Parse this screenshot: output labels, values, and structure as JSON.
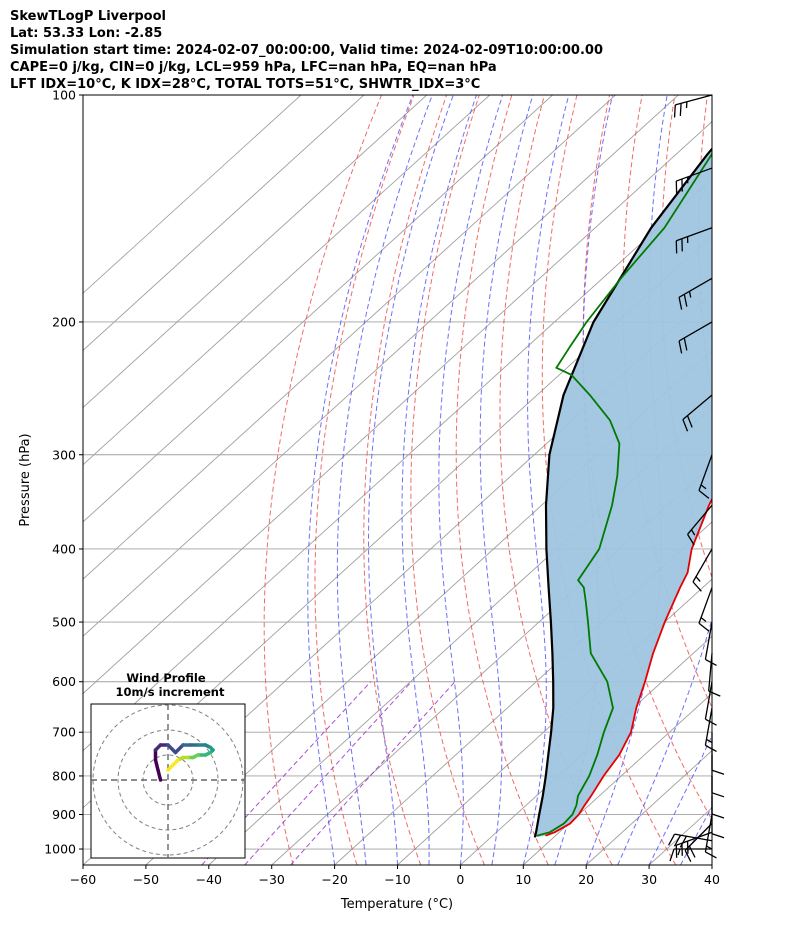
{
  "header": {
    "title": "SkewTLogP Liverpool",
    "location": "Lat: 53.33   Lon: -2.85",
    "times": "Simulation start time: 2024-02-07_00:00:00, Valid time: 2024-02-09T10:00:00.00",
    "indices1": "CAPE=0 j/kg, CIN=0 j/kg, LCL=959 hPa, LFC=nan hPa, EQ=nan hPa",
    "indices2": "LFT IDX=10°C, K IDX=28°C, TOTAL TOTS=51°C, SHWTR_IDX=3°C"
  },
  "colors": {
    "temperature": "#e60000",
    "dewpoint": "#007a00",
    "parcel": "#000000",
    "shading": "#9fc5e0",
    "dry_adiabat": "#ef5050",
    "moist_adiabat": "#5555ff",
    "mixing_ratio": "#9933cc",
    "isotherm": "#a0a0a0"
  },
  "chart_data": {
    "type": "line",
    "xlabel": "Temperature (°C)",
    "ylabel": "Pressure (hPa)",
    "xlim": [
      -60,
      40
    ],
    "ylim": [
      1050,
      100
    ],
    "yscale": "log",
    "grid": true,
    "x_ticks": [
      "−60",
      "−50",
      "−40",
      "−30",
      "−20",
      "−10",
      "0",
      "10",
      "20",
      "30",
      "40"
    ],
    "y_ticks": [
      "100",
      "200",
      "300",
      "400",
      "500",
      "600",
      "700",
      "800",
      "900",
      "1000"
    ],
    "series": [
      {
        "role": "temperature",
        "pressure": [
          960,
          950,
          925,
          900,
          875,
          850,
          800,
          750,
          700,
          650,
          600,
          550,
          500,
          450,
          430,
          400,
          350,
          320,
          300,
          290,
          275,
          265,
          250,
          230,
          200,
          170,
          150,
          125,
          110,
          100
        ],
        "temperature": [
          8.4,
          9.3,
          10.2,
          10.0,
          9.3,
          8.7,
          7.2,
          6.0,
          3.9,
          0.5,
          -2.7,
          -6.4,
          -10.0,
          -13.6,
          -15.0,
          -18.5,
          -23.4,
          -26.2,
          -27.7,
          -28.2,
          -27.5,
          -28.0,
          -28.9,
          -33.4,
          -40.1,
          -47.2,
          -51.5,
          -56.6,
          -60.5,
          -62.8
        ]
      },
      {
        "role": "dewpoint",
        "pressure": [
          960,
          950,
          925,
          900,
          875,
          850,
          800,
          750,
          700,
          650,
          600,
          550,
          500,
          470,
          450,
          440,
          400,
          350,
          320,
          290,
          270,
          250,
          235,
          230,
          215,
          200,
          175,
          150,
          120,
          100
        ],
        "temperature": [
          7.0,
          8.5,
          9.2,
          9.0,
          8.0,
          6.6,
          4.9,
          2.5,
          -0.4,
          -3.2,
          -8.7,
          -16.3,
          -22.2,
          -26.1,
          -28.9,
          -31.1,
          -33.2,
          -38.8,
          -43.1,
          -48.4,
          -54.0,
          -61.6,
          -68.1,
          -71.7,
          -73.3,
          -74.9,
          -77.1,
          -79.0,
          -84.3,
          -89.6
        ]
      },
      {
        "role": "parcel",
        "pressure": [
          965,
          950,
          900,
          850,
          800,
          750,
          700,
          650,
          600,
          550,
          500,
          450,
          400,
          350,
          300,
          250,
          200,
          150,
          120,
          100
        ],
        "temperature": [
          7.0,
          6.3,
          3.7,
          1.0,
          -2.0,
          -5.3,
          -8.8,
          -12.7,
          -17.3,
          -22.4,
          -28.1,
          -34.5,
          -41.6,
          -49.3,
          -57.6,
          -65.8,
          -73.8,
          -81.1,
          -85.0,
          -87.3
        ]
      }
    ],
    "wind_barbs": {
      "pressure": [
        1000,
        975,
        950,
        925,
        900,
        850,
        800,
        750,
        700,
        650,
        600,
        550,
        500,
        450,
        400,
        350,
        300,
        250,
        200,
        175,
        150,
        125,
        100
      ],
      "speed_kt": [
        15,
        30,
        30,
        20,
        15,
        10,
        10,
        10,
        10,
        15,
        10,
        10,
        10,
        15,
        15,
        15,
        15,
        20,
        20,
        25,
        25,
        25,
        25
      ],
      "direction_deg": [
        270,
        280,
        250,
        225,
        190,
        180,
        180,
        180,
        180,
        190,
        190,
        185,
        190,
        200,
        210,
        220,
        200,
        230,
        240,
        240,
        250,
        250,
        255
      ]
    },
    "inset": {
      "title": "Wind Profile",
      "subtitle": "10m/s increment",
      "type": "hodograph",
      "u": [
        -3,
        -4,
        -5,
        -5,
        -3,
        0,
        3,
        6,
        9,
        12,
        15,
        17,
        18,
        17,
        15,
        12,
        10,
        8,
        6,
        4,
        2,
        0
      ],
      "v": [
        0,
        4,
        8,
        12,
        14,
        14,
        11,
        14,
        14,
        14,
        14,
        13,
        12,
        11,
        10,
        10,
        9,
        9,
        9,
        8,
        6,
        4
      ]
    }
  }
}
